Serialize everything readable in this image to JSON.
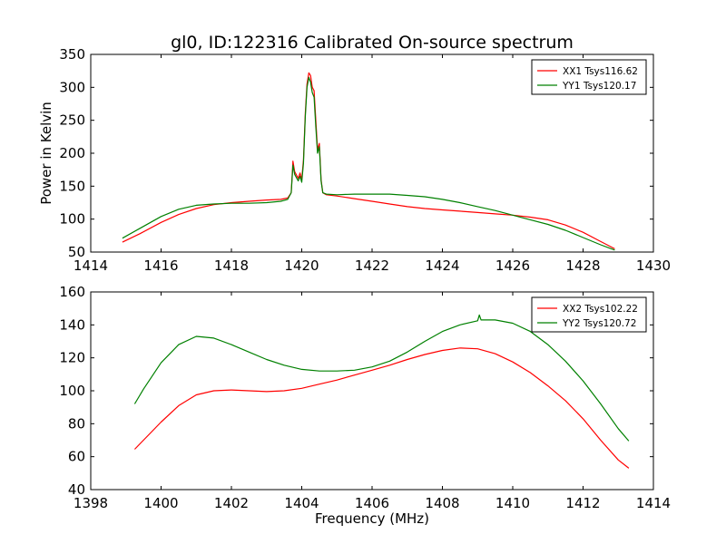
{
  "title": "gl0, ID:122316 Calibrated On-source spectrum",
  "colors": {
    "red": "#ff0000",
    "green": "#008000"
  },
  "chart_data": [
    {
      "type": "line",
      "title": "gl0, ID:122316 Calibrated On-source spectrum",
      "xlabel": "",
      "ylabel": "Power in Kelvin",
      "xlim": [
        1414,
        1430
      ],
      "ylim": [
        50,
        350
      ],
      "xticks": [
        1414,
        1416,
        1418,
        1420,
        1422,
        1424,
        1426,
        1428,
        1430
      ],
      "yticks": [
        50,
        100,
        150,
        200,
        250,
        300,
        350
      ],
      "grid": false,
      "legend": "top-right",
      "series": [
        {
          "name": "XX1 Tsys116.62",
          "color": "#ff0000",
          "points": [
            [
              1414.9,
              65
            ],
            [
              1415.4,
              78
            ],
            [
              1416.0,
              95
            ],
            [
              1416.5,
              107
            ],
            [
              1417.0,
              116
            ],
            [
              1417.5,
              122
            ],
            [
              1418.0,
              125
            ],
            [
              1418.5,
              127
            ],
            [
              1419.0,
              129
            ],
            [
              1419.4,
              130
            ],
            [
              1419.6,
              132
            ],
            [
              1419.7,
              140
            ],
            [
              1419.75,
              188
            ],
            [
              1419.8,
              172
            ],
            [
              1419.9,
              162
            ],
            [
              1419.95,
              170
            ],
            [
              1420.0,
              160
            ],
            [
              1420.05,
              190
            ],
            [
              1420.1,
              260
            ],
            [
              1420.15,
              305
            ],
            [
              1420.2,
              322
            ],
            [
              1420.25,
              318
            ],
            [
              1420.3,
              300
            ],
            [
              1420.35,
              295
            ],
            [
              1420.4,
              250
            ],
            [
              1420.45,
              205
            ],
            [
              1420.5,
              215
            ],
            [
              1420.55,
              160
            ],
            [
              1420.6,
              140
            ],
            [
              1420.7,
              137
            ],
            [
              1421.0,
              135
            ],
            [
              1421.5,
              131
            ],
            [
              1422.0,
              127
            ],
            [
              1422.5,
              123
            ],
            [
              1423.0,
              119
            ],
            [
              1423.5,
              116
            ],
            [
              1424.0,
              114
            ],
            [
              1424.5,
              112
            ],
            [
              1425.0,
              110
            ],
            [
              1425.5,
              108
            ],
            [
              1426.0,
              106
            ],
            [
              1426.5,
              103
            ],
            [
              1427.0,
              99
            ],
            [
              1427.5,
              91
            ],
            [
              1428.0,
              80
            ],
            [
              1428.5,
              66
            ],
            [
              1428.9,
              55
            ]
          ]
        },
        {
          "name": "YY1 Tsys120.17",
          "color": "#008000",
          "points": [
            [
              1414.9,
              71
            ],
            [
              1415.4,
              86
            ],
            [
              1416.0,
              104
            ],
            [
              1416.5,
              115
            ],
            [
              1417.0,
              121
            ],
            [
              1417.5,
              123
            ],
            [
              1418.0,
              124
            ],
            [
              1418.5,
              124
            ],
            [
              1419.0,
              125
            ],
            [
              1419.4,
              127
            ],
            [
              1419.6,
              130
            ],
            [
              1419.7,
              140
            ],
            [
              1419.75,
              182
            ],
            [
              1419.8,
              168
            ],
            [
              1419.9,
              158
            ],
            [
              1419.95,
              165
            ],
            [
              1420.0,
              156
            ],
            [
              1420.05,
              185
            ],
            [
              1420.1,
              255
            ],
            [
              1420.15,
              300
            ],
            [
              1420.2,
              315
            ],
            [
              1420.25,
              308
            ],
            [
              1420.3,
              292
            ],
            [
              1420.35,
              285
            ],
            [
              1420.4,
              240
            ],
            [
              1420.45,
              200
            ],
            [
              1420.5,
              210
            ],
            [
              1420.55,
              158
            ],
            [
              1420.6,
              140
            ],
            [
              1420.7,
              138
            ],
            [
              1421.0,
              137
            ],
            [
              1421.5,
              138
            ],
            [
              1422.0,
              138
            ],
            [
              1422.5,
              138
            ],
            [
              1423.0,
              136
            ],
            [
              1423.5,
              134
            ],
            [
              1424.0,
              130
            ],
            [
              1424.5,
              125
            ],
            [
              1425.0,
              119
            ],
            [
              1425.5,
              113
            ],
            [
              1426.0,
              106
            ],
            [
              1426.5,
              99
            ],
            [
              1427.0,
              92
            ],
            [
              1427.5,
              83
            ],
            [
              1428.0,
              72
            ],
            [
              1428.5,
              61
            ],
            [
              1428.9,
              53
            ]
          ]
        }
      ]
    },
    {
      "type": "line",
      "title": "",
      "xlabel": "Frequency (MHz)",
      "ylabel": "",
      "xlim": [
        1398,
        1414
      ],
      "ylim": [
        40,
        160
      ],
      "xticks": [
        1398,
        1400,
        1402,
        1404,
        1406,
        1408,
        1410,
        1412,
        1414
      ],
      "yticks": [
        40,
        60,
        80,
        100,
        120,
        140,
        160
      ],
      "grid": false,
      "legend": "top-right",
      "series": [
        {
          "name": "XX2 Tsys102.22",
          "color": "#ff0000",
          "points": [
            [
              1399.25,
              64.5
            ],
            [
              1399.5,
              70
            ],
            [
              1400.0,
              81
            ],
            [
              1400.5,
              91
            ],
            [
              1401.0,
              97.5
            ],
            [
              1401.5,
              100
            ],
            [
              1402.0,
              100.5
            ],
            [
              1402.5,
              100
            ],
            [
              1403.0,
              99.5
            ],
            [
              1403.5,
              100
            ],
            [
              1404.0,
              101.5
            ],
            [
              1404.5,
              104
            ],
            [
              1405.0,
              106.5
            ],
            [
              1405.5,
              109.5
            ],
            [
              1406.0,
              112.5
            ],
            [
              1406.5,
              115.5
            ],
            [
              1407.0,
              119
            ],
            [
              1407.5,
              122
            ],
            [
              1408.0,
              124.5
            ],
            [
              1408.5,
              126
            ],
            [
              1409.0,
              125.5
            ],
            [
              1409.5,
              122.5
            ],
            [
              1410.0,
              117.5
            ],
            [
              1410.5,
              111
            ],
            [
              1411.0,
              103
            ],
            [
              1411.5,
              94
            ],
            [
              1412.0,
              83
            ],
            [
              1412.5,
              70
            ],
            [
              1413.0,
              58
            ],
            [
              1413.3,
              53
            ]
          ]
        },
        {
          "name": "YY2 Tsys120.72",
          "color": "#008000",
          "points": [
            [
              1399.25,
              92
            ],
            [
              1399.5,
              101
            ],
            [
              1400.0,
              117
            ],
            [
              1400.5,
              128
            ],
            [
              1401.0,
              133
            ],
            [
              1401.5,
              132
            ],
            [
              1402.0,
              128
            ],
            [
              1402.5,
              123.5
            ],
            [
              1403.0,
              119
            ],
            [
              1403.5,
              115.5
            ],
            [
              1404.0,
              113
            ],
            [
              1404.5,
              112
            ],
            [
              1405.0,
              112
            ],
            [
              1405.5,
              112.5
            ],
            [
              1406.0,
              114.5
            ],
            [
              1406.5,
              118
            ],
            [
              1407.0,
              123.5
            ],
            [
              1407.5,
              130
            ],
            [
              1408.0,
              136
            ],
            [
              1408.5,
              140
            ],
            [
              1409.0,
              142.5
            ],
            [
              1409.05,
              146
            ],
            [
              1409.1,
              143
            ],
            [
              1409.5,
              143
            ],
            [
              1410.0,
              141
            ],
            [
              1410.5,
              136
            ],
            [
              1411.0,
              128
            ],
            [
              1411.5,
              118
            ],
            [
              1412.0,
              106
            ],
            [
              1412.5,
              92
            ],
            [
              1413.0,
              77
            ],
            [
              1413.3,
              69.5
            ]
          ]
        }
      ]
    }
  ]
}
